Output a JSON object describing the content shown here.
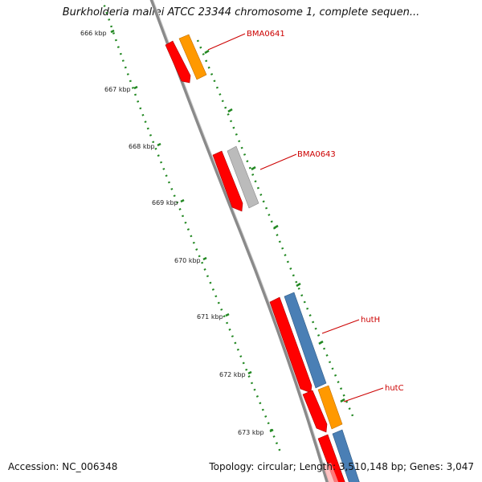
{
  "header": {
    "title": "Burkholderia mallei ATCC 23344 chromosome 1, complete sequen..."
  },
  "footer": {
    "accession_label": "Accession:",
    "accession_value": "NC_006348",
    "topology_label": "Topology:",
    "topology_value": "circular",
    "length_label": "Length:",
    "length_value": "3,510,148 bp",
    "genes_label": "Genes:",
    "genes_value": "3,047"
  },
  "ticks": [
    {
      "label": "666 kbp"
    },
    {
      "label": "667 kbp"
    },
    {
      "label": "668 kbp"
    },
    {
      "label": "669 kbp"
    },
    {
      "label": "670 kbp"
    },
    {
      "label": "671 kbp"
    },
    {
      "label": "672 kbp"
    },
    {
      "label": "673 kbp"
    }
  ],
  "gene_labels": [
    {
      "text": "BMA0641"
    },
    {
      "text": "BMA0643"
    },
    {
      "text": "hutH"
    },
    {
      "text": "hutC"
    }
  ],
  "colors": {
    "cds": "#ff0000",
    "gene_orange": "#ff9900",
    "gene_gray": "#bbbbbb",
    "gene_blue": "#4a7fb5",
    "backbone": "#888888",
    "ticks": "#228822",
    "label": "#cc0000"
  }
}
